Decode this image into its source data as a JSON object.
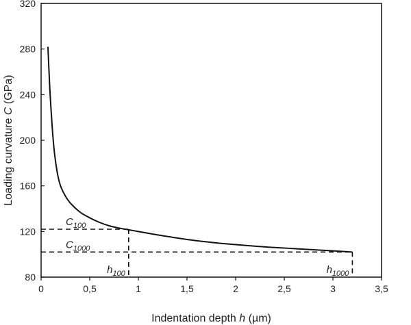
{
  "chart_data": {
    "type": "line",
    "xlabel": "Indentation depth",
    "xlabel_symbol": "h",
    "xlabel_unit": "(µm)",
    "ylabel": "Loading curvature",
    "ylabel_symbol": "C",
    "ylabel_unit": "(GPa)",
    "xlim": [
      0,
      3.5
    ],
    "ylim": [
      80,
      320
    ],
    "x_ticks": [
      "0",
      "0,5",
      "1",
      "1,5",
      "2",
      "2,5",
      "3",
      "3,5"
    ],
    "y_ticks": [
      "80",
      "120",
      "160",
      "200",
      "240",
      "280",
      "320"
    ],
    "grid": false,
    "legend": "none",
    "series": [
      {
        "x": [
          0.07,
          0.08,
          0.09,
          0.1,
          0.12,
          0.14,
          0.17,
          0.2,
          0.25,
          0.3,
          0.4,
          0.5,
          0.6,
          0.7,
          0.8,
          0.9,
          1.0,
          1.2,
          1.5,
          1.8,
          2.0,
          2.3,
          2.6,
          3.0,
          3.2
        ],
        "y": [
          282,
          263,
          245,
          230,
          205,
          187,
          170,
          160,
          151,
          145,
          137,
          132,
          128,
          125,
          123,
          121.5,
          120,
          117,
          113,
          110,
          108.5,
          106.5,
          105,
          103,
          102
        ]
      }
    ],
    "annotations": [
      {
        "label": "C",
        "sub": "100",
        "x": 0.9,
        "y": 122
      },
      {
        "label": "C",
        "sub": "1000",
        "x": 3.2,
        "y": 102
      },
      {
        "label": "h",
        "sub": "100",
        "x": 0.9,
        "y": 122
      },
      {
        "label": "h",
        "sub": "1000",
        "x": 3.2,
        "y": 102
      }
    ]
  }
}
